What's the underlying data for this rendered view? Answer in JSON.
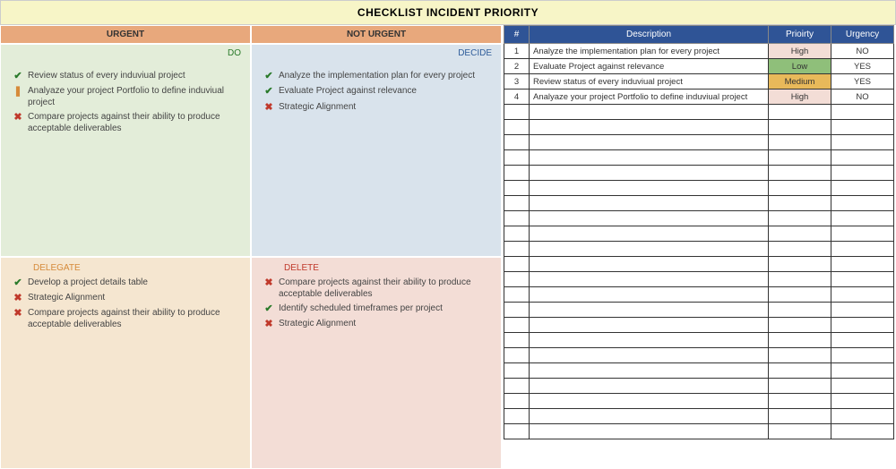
{
  "title": "CHECKLIST INCIDENT PRIORITY",
  "matrix": {
    "col_headers": [
      "URGENT",
      "NOT URGENT"
    ],
    "quadrants": {
      "do": {
        "label": "DO",
        "items": [
          {
            "icon": "check",
            "text": "Review status of every induviual project"
          },
          {
            "icon": "excl",
            "text": "Analyaze your project Portfolio to define induviual project"
          },
          {
            "icon": "cross",
            "text": "Compare projects against their ability to produce acceptable deliverables"
          }
        ]
      },
      "decide": {
        "label": "DECIDE",
        "items": [
          {
            "icon": "check",
            "text": "Analyze the implementation plan for every project"
          },
          {
            "icon": "check",
            "text": "Evaluate Project against relevance"
          },
          {
            "icon": "cross",
            "text": "Strategic Alignment"
          }
        ]
      },
      "delegate": {
        "label": "DELEGATE",
        "items": [
          {
            "icon": "check",
            "text": "Develop a project details table"
          },
          {
            "icon": "cross",
            "text": "Strategic Alignment"
          },
          {
            "icon": "cross",
            "text": "Compare projects against their ability to produce acceptable deliverables"
          }
        ]
      },
      "delete": {
        "label": "DELETE",
        "items": [
          {
            "icon": "cross",
            "text": "Compare projects against their ability to produce acceptable deliverables"
          },
          {
            "icon": "check",
            "text": "Identify scheduled timeframes per project"
          },
          {
            "icon": "cross",
            "text": "Strategic Alignment"
          }
        ]
      }
    }
  },
  "table": {
    "columns": [
      "#",
      "Description",
      "Prioirty",
      "Urgency"
    ],
    "rows": [
      {
        "num": "1",
        "desc": "Analyze the implementation plan for every project",
        "priority": "High",
        "priority_class": "pri-high",
        "urgency": "NO"
      },
      {
        "num": "2",
        "desc": "Evaluate Project against relevance",
        "priority": "Low",
        "priority_class": "pri-low",
        "urgency": "YES"
      },
      {
        "num": "3",
        "desc": "Review status of every induviual project",
        "priority": "Medium",
        "priority_class": "pri-med",
        "urgency": "YES"
      },
      {
        "num": "4",
        "desc": "Analyaze your project Portfolio to define induviual project",
        "priority": "High",
        "priority_class": "pri-high",
        "urgency": "NO"
      }
    ],
    "empty_rows": 22
  },
  "icons": {
    "check": "✔",
    "excl": "❚",
    "cross": "✖"
  },
  "colors": {
    "title_bg": "#f7f5c7",
    "header_bg": "#e8a87c",
    "do_bg": "#e3edd9",
    "decide_bg": "#d9e3ec",
    "delegate_bg": "#f5e6d0",
    "delete_bg": "#f3ddd6",
    "table_header_bg": "#2f5496",
    "pri_high_bg": "#f3ddd6",
    "pri_low_bg": "#8fbf7a",
    "pri_med_bg": "#e8b95a"
  }
}
